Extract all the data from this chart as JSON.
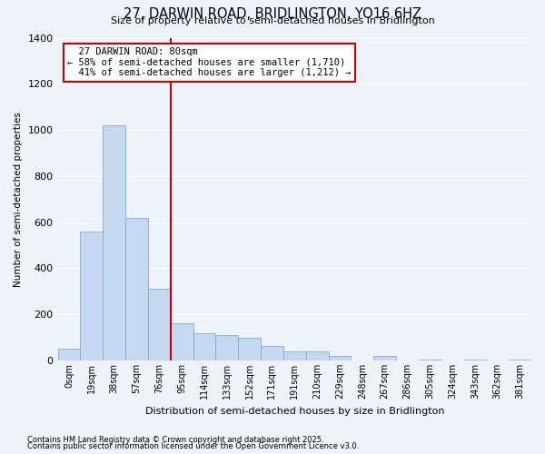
{
  "title": "27, DARWIN ROAD, BRIDLINGTON, YO16 6HZ",
  "subtitle": "Size of property relative to semi-detached houses in Bridlington",
  "xlabel": "Distribution of semi-detached houses by size in Bridlington",
  "ylabel": "Number of semi-detached properties",
  "footnote1": "Contains HM Land Registry data © Crown copyright and database right 2025.",
  "footnote2": "Contains public sector information licensed under the Open Government Licence v3.0.",
  "bar_labels": [
    "0sqm",
    "19sqm",
    "38sqm",
    "57sqm",
    "76sqm",
    "95sqm",
    "114sqm",
    "133sqm",
    "152sqm",
    "171sqm",
    "191sqm",
    "210sqm",
    "229sqm",
    "248sqm",
    "267sqm",
    "286sqm",
    "305sqm",
    "324sqm",
    "343sqm",
    "362sqm",
    "381sqm"
  ],
  "bar_values": [
    50,
    560,
    1020,
    620,
    310,
    160,
    120,
    110,
    100,
    65,
    40,
    40,
    20,
    0,
    20,
    0,
    5,
    0,
    5,
    0,
    5
  ],
  "bar_color": "#c5d8ef",
  "bar_edge_color": "#7aaed4",
  "marker_label": "27 DARWIN ROAD: 80sqm",
  "smaller_pct": "58%",
  "smaller_n": "1,710",
  "larger_pct": "41%",
  "larger_n": "1,212",
  "marker_line_color": "#cc0000",
  "annotation_box_color": "#cc0000",
  "ylim": [
    0,
    1400
  ],
  "yticks": [
    0,
    200,
    400,
    600,
    800,
    1000,
    1200,
    1400
  ],
  "background_color": "#eef2f9",
  "grid_color": "#d8dfe8"
}
